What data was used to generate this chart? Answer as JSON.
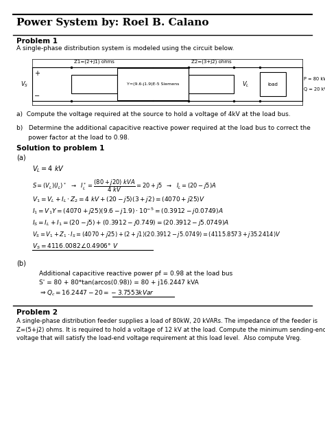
{
  "title": "Power System by: Roel B. Calano",
  "bg_color": "#ffffff",
  "text_color": "#000000",
  "problem1_header": "Problem 1",
  "problem1_desc": "A single-phase distribution system is modeled using the circuit below.",
  "problem1_q_a": "a)  Compute the voltage required at the source to hold a voltage of 4kV at the load bus.",
  "problem1_q_b1": "b)   Determine the additional capacitive reactive power required at the load bus to correct the",
  "problem1_q_b2": "      power factor at the load to 0.98.",
  "solution_header": "Solution to problem 1",
  "solution_a_label": "(a)",
  "solution_b_label": "(b)",
  "solution_b_line1": "Additional capacitive reactive power pf = 0.98 at the load bus",
  "solution_b_line2": "S' = 80 + 80*tan(arcos(0.98)) = 80 + j16.2447 kVA",
  "problem2_header": "Problem 2",
  "problem2_desc1": "A single-phase distribution feeder supplies a load of 80kW, 20 kVARs. The impedance of the feeder is",
  "problem2_desc2": "Z=(5+j2) ohms. It is required to hold a voltage of 12 kV at the load. Compute the minimum sending-end",
  "problem2_desc3": "voltage that will satisfy the load-end voltage requirement at this load level.  Also compute Vreg."
}
